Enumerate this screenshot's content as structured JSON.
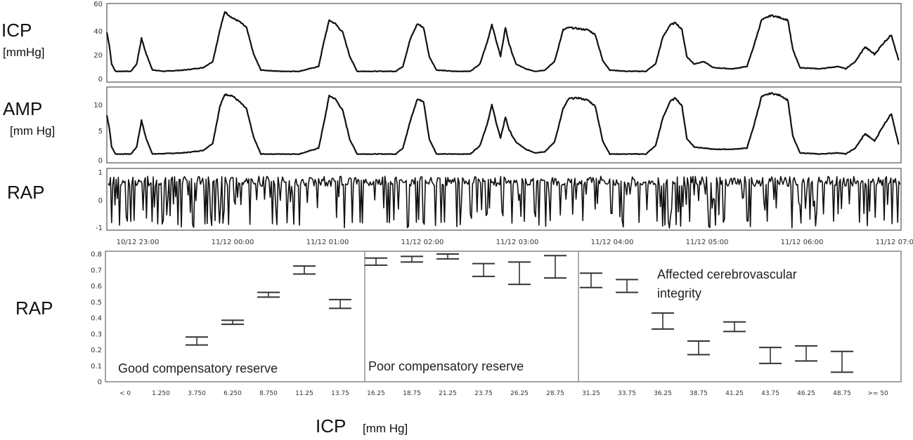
{
  "chart_data": [
    {
      "type": "line",
      "panel": "icp",
      "ylabel": "ICP",
      "yunit": "[mmHg]",
      "ylim": [
        0,
        60
      ],
      "yticks": [
        0,
        20,
        40,
        60
      ],
      "x_start": "10/12 22:30",
      "x_end": "11/12 07:00",
      "baseline": 7,
      "series": [
        {
          "values": [
            [
              0,
              38
            ],
            [
              0.05,
              28
            ],
            [
              0.1,
              12
            ],
            [
              0.18,
              6
            ],
            [
              0.38,
              6
            ],
            [
              0.5,
              6
            ],
            [
              0.62,
              12
            ],
            [
              0.72,
              33
            ],
            [
              0.82,
              20
            ],
            [
              0.95,
              7
            ],
            [
              1.2,
              6
            ],
            [
              1.6,
              7
            ],
            [
              2.0,
              9
            ],
            [
              2.2,
              14
            ],
            [
              2.35,
              40
            ],
            [
              2.45,
              55
            ],
            [
              2.6,
              50
            ],
            [
              2.75,
              47
            ],
            [
              2.9,
              42
            ],
            [
              3.05,
              20
            ],
            [
              3.2,
              7
            ],
            [
              3.6,
              6
            ],
            [
              4.0,
              6
            ],
            [
              4.4,
              10
            ],
            [
              4.52,
              32
            ],
            [
              4.62,
              48
            ],
            [
              4.75,
              45
            ],
            [
              4.9,
              38
            ],
            [
              5.05,
              18
            ],
            [
              5.2,
              6
            ],
            [
              5.6,
              6
            ],
            [
              6.0,
              6
            ],
            [
              6.15,
              10
            ],
            [
              6.3,
              32
            ],
            [
              6.45,
              45
            ],
            [
              6.58,
              42
            ],
            [
              6.7,
              18
            ],
            [
              6.85,
              7
            ],
            [
              7.2,
              6
            ],
            [
              7.55,
              6
            ],
            [
              7.75,
              12
            ],
            [
              7.9,
              30
            ],
            [
              8.0,
              44
            ],
            [
              8.1,
              30
            ],
            [
              8.18,
              18
            ],
            [
              8.28,
              42
            ],
            [
              8.36,
              28
            ],
            [
              8.5,
              12
            ],
            [
              8.7,
              8
            ],
            [
              8.9,
              6
            ],
            [
              9.1,
              7
            ],
            [
              9.3,
              14
            ],
            [
              9.48,
              40
            ],
            [
              9.6,
              42
            ],
            [
              9.8,
              41
            ],
            [
              10.0,
              40
            ],
            [
              10.15,
              36
            ],
            [
              10.3,
              15
            ],
            [
              10.45,
              7
            ],
            [
              10.8,
              6
            ],
            [
              11.2,
              6
            ],
            [
              11.4,
              12
            ],
            [
              11.55,
              34
            ],
            [
              11.7,
              44
            ],
            [
              11.82,
              46
            ],
            [
              11.95,
              40
            ],
            [
              12.05,
              18
            ],
            [
              12.2,
              12
            ],
            [
              12.4,
              14
            ],
            [
              12.6,
              9
            ],
            [
              13.0,
              8
            ],
            [
              13.3,
              10
            ],
            [
              13.45,
              28
            ],
            [
              13.6,
              48
            ],
            [
              13.8,
              52
            ],
            [
              14.0,
              50
            ],
            [
              14.15,
              48
            ],
            [
              14.25,
              24
            ],
            [
              14.4,
              9
            ],
            [
              14.8,
              8
            ],
            [
              15.2,
              10
            ],
            [
              15.35,
              8
            ],
            [
              15.55,
              14
            ],
            [
              15.75,
              26
            ],
            [
              15.95,
              20
            ],
            [
              16.15,
              30
            ],
            [
              16.3,
              36
            ],
            [
              16.45,
              15
            ]
          ]
        }
      ]
    },
    {
      "type": "line",
      "panel": "amp",
      "ylabel": "AMP",
      "yunit": "[mm Hg]",
      "ylim": [
        0,
        12
      ],
      "yticks": [
        0,
        5,
        10
      ],
      "series": [
        {
          "values": [
            [
              0,
              7.5
            ],
            [
              0.05,
              5.5
            ],
            [
              0.1,
              2.2
            ],
            [
              0.18,
              1.0
            ],
            [
              0.5,
              1.0
            ],
            [
              0.62,
              2.2
            ],
            [
              0.72,
              6.6
            ],
            [
              0.82,
              3.5
            ],
            [
              0.95,
              1.0
            ],
            [
              1.6,
              1.2
            ],
            [
              2.0,
              1.6
            ],
            [
              2.2,
              2.8
            ],
            [
              2.35,
              9.0
            ],
            [
              2.45,
              11.0
            ],
            [
              2.6,
              10.8
            ],
            [
              2.75,
              9.8
            ],
            [
              2.9,
              8.6
            ],
            [
              3.05,
              3.8
            ],
            [
              3.2,
              1.0
            ],
            [
              4.0,
              1.0
            ],
            [
              4.4,
              2.0
            ],
            [
              4.52,
              6.6
            ],
            [
              4.62,
              10.8
            ],
            [
              4.75,
              10.2
            ],
            [
              4.9,
              8.3
            ],
            [
              5.05,
              3.4
            ],
            [
              5.2,
              1.0
            ],
            [
              6.0,
              1.0
            ],
            [
              6.15,
              2.0
            ],
            [
              6.3,
              6.4
            ],
            [
              6.45,
              10.2
            ],
            [
              6.58,
              9.8
            ],
            [
              6.7,
              3.5
            ],
            [
              6.85,
              1.0
            ],
            [
              7.55,
              1.0
            ],
            [
              7.75,
              2.4
            ],
            [
              7.9,
              6.0
            ],
            [
              8.0,
              9.2
            ],
            [
              8.1,
              6.0
            ],
            [
              8.18,
              3.6
            ],
            [
              8.28,
              7.2
            ],
            [
              8.36,
              5.0
            ],
            [
              8.5,
              3.0
            ],
            [
              8.7,
              1.8
            ],
            [
              8.9,
              1.2
            ],
            [
              9.1,
              1.4
            ],
            [
              9.3,
              3.0
            ],
            [
              9.48,
              8.6
            ],
            [
              9.6,
              10.3
            ],
            [
              9.8,
              10.4
            ],
            [
              10.0,
              10.0
            ],
            [
              10.15,
              9.0
            ],
            [
              10.3,
              3.2
            ],
            [
              10.45,
              1.0
            ],
            [
              11.2,
              1.0
            ],
            [
              11.4,
              2.4
            ],
            [
              11.55,
              7.0
            ],
            [
              11.7,
              9.8
            ],
            [
              11.82,
              10.4
            ],
            [
              11.95,
              9.0
            ],
            [
              12.05,
              3.6
            ],
            [
              12.2,
              2.2
            ],
            [
              12.4,
              2.0
            ],
            [
              12.6,
              1.8
            ],
            [
              13.0,
              1.8
            ],
            [
              13.3,
              2.0
            ],
            [
              13.45,
              6.0
            ],
            [
              13.6,
              10.6
            ],
            [
              13.8,
              11.2
            ],
            [
              14.0,
              10.8
            ],
            [
              14.15,
              10.0
            ],
            [
              14.25,
              4.0
            ],
            [
              14.4,
              1.2
            ],
            [
              14.8,
              1.0
            ],
            [
              15.2,
              1.2
            ],
            [
              15.35,
              1.0
            ],
            [
              15.55,
              2.0
            ],
            [
              15.75,
              4.4
            ],
            [
              15.95,
              3.2
            ],
            [
              16.15,
              6.0
            ],
            [
              16.3,
              7.8
            ],
            [
              16.45,
              2.6
            ]
          ]
        }
      ]
    },
    {
      "type": "line",
      "panel": "rap",
      "ylabel": "RAP",
      "ylim": [
        -1,
        1
      ],
      "yticks": [
        -1,
        0,
        1
      ],
      "note": "noisy signal oscillating between about -1 and 1, mostly near 0.8"
    },
    {
      "type": "errorbar",
      "panel": "rap_vs_icp",
      "ylabel": "RAP",
      "xlabel": "ICP",
      "xunit": "[mm Hg]",
      "ylim": [
        0,
        0.8
      ],
      "yticks": [
        "0",
        "0.1",
        "0.2",
        "0.3",
        "0.4",
        "0.5",
        "0.6",
        "0.7",
        "0.8"
      ],
      "categories": [
        "< 0",
        "1.250",
        "3.750",
        "6.250",
        "8.750",
        "11.25",
        "13.75",
        "16.25",
        "18.75",
        "21.25",
        "23.75",
        "26.25",
        "28.75",
        "31.25",
        "33.75",
        "36.25",
        "38.75",
        "41.25",
        "43.75",
        "46.25",
        "48.75",
        ">= 50"
      ],
      "intervals": [
        null,
        null,
        [
          0.23,
          0.28
        ],
        [
          0.36,
          0.385
        ],
        [
          0.53,
          0.56
        ],
        [
          0.675,
          0.725
        ],
        [
          0.46,
          0.515
        ],
        [
          0.73,
          0.775
        ],
        [
          0.75,
          0.785
        ],
        [
          0.77,
          0.8
        ],
        [
          0.66,
          0.74
        ],
        [
          0.61,
          0.75
        ],
        [
          0.65,
          0.79
        ],
        [
          0.59,
          0.68
        ],
        [
          0.56,
          0.64
        ],
        [
          0.33,
          0.43
        ],
        [
          0.17,
          0.255
        ],
        [
          0.315,
          0.375
        ],
        [
          0.115,
          0.215
        ],
        [
          0.13,
          0.225
        ],
        [
          0.06,
          0.19
        ],
        null
      ],
      "regions": [
        {
          "label": "Good compensatory reserve"
        },
        {
          "label": "Poor compensatory reserve"
        },
        {
          "label": "Affected cerebrovascular integrity"
        }
      ]
    }
  ],
  "time_ticks": [
    "10/12 23:00",
    "11/12 00:00",
    "11/12 01:00",
    "11/12 02:00",
    "11/12 03:00",
    "11/12 04:00",
    "11/12 05:00",
    "11/12 06:00",
    "11/12 07:00"
  ],
  "labels": {
    "icp": "ICP",
    "icp_unit": "[mmHg]",
    "amp": "AMP",
    "amp_unit": "[mm Hg]",
    "rap_top": "RAP",
    "rap_bottom": "RAP",
    "x_title": "ICP",
    "x_unit": "[mm Hg]",
    "region_good": "Good compensatory reserve",
    "region_poor": "Poor compensatory reserve",
    "region_affected_1": "Affected cerebrovascular",
    "region_affected_2": "integrity"
  },
  "colors": {
    "line": "#111111",
    "frame": "#555555",
    "errorbar": "#333333"
  }
}
